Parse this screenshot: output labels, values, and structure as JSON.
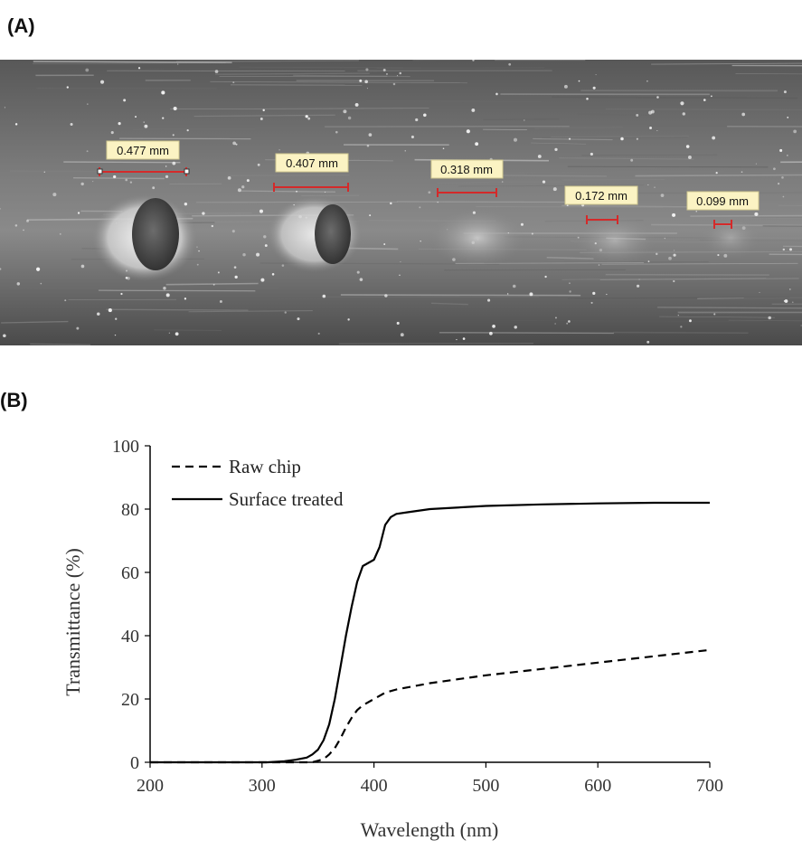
{
  "panel_a": {
    "label": "(A)",
    "measurements": [
      {
        "text": "0.477 mm"
      },
      {
        "text": "0.407 mm"
      },
      {
        "text": "0.318 mm"
      },
      {
        "text": "0.172 mm"
      },
      {
        "text": "0.099 mm"
      }
    ],
    "colors": {
      "scale_bar": "#d42a2a",
      "label_bg": "#fbf3c3"
    }
  },
  "panel_b": {
    "label": "(B)"
  },
  "chart_data": {
    "type": "line",
    "xlabel": "Wavelength  (nm)",
    "ylabel": "Transmittance  (%)",
    "xlim": [
      200,
      700
    ],
    "ylim": [
      0,
      100
    ],
    "xticks": [
      "200",
      "300",
      "400",
      "500",
      "600",
      "700"
    ],
    "yticks": [
      "0",
      "20",
      "40",
      "60",
      "80",
      "100"
    ],
    "grid": false,
    "legend_position": "top-left",
    "series": [
      {
        "name": "Raw chip",
        "style": "dashed",
        "color": "#000000",
        "x": [
          200,
          345,
          350,
          355,
          360,
          365,
          370,
          375,
          380,
          385,
          390,
          400,
          410,
          420,
          450,
          500,
          550,
          600,
          650,
          700
        ],
        "y": [
          0,
          0,
          0.5,
          1,
          2.5,
          4.5,
          7.5,
          11,
          14,
          16.5,
          18,
          20,
          22,
          23,
          25,
          27.5,
          29.5,
          31.5,
          33.5,
          35.5
        ]
      },
      {
        "name": "Surface treated",
        "style": "solid",
        "color": "#000000",
        "x": [
          200,
          305,
          320,
          330,
          340,
          345,
          350,
          355,
          360,
          365,
          370,
          375,
          380,
          385,
          390,
          395,
          400,
          405,
          410,
          415,
          420,
          430,
          450,
          500,
          550,
          600,
          650,
          700
        ],
        "y": [
          0,
          0,
          0.3,
          0.8,
          1.5,
          2.5,
          4,
          7,
          12,
          20,
          30,
          40,
          49,
          57,
          62,
          63,
          64,
          68,
          75,
          77.5,
          78.5,
          79,
          80,
          81,
          81.5,
          81.8,
          82,
          82
        ]
      }
    ]
  }
}
